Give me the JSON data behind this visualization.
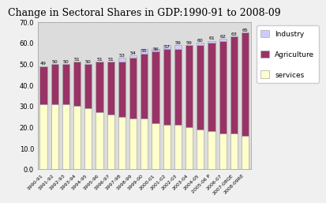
{
  "title": "Change in Sectoral Shares in GDP:1990-91 to 2008-09",
  "categories": [
    "1990-91",
    "1991-92",
    "1992-93",
    "1993-94",
    "1994-95",
    "1995-96",
    "1996-97",
    "1997-98",
    "1998-99",
    "1999-00",
    "2000-01",
    "2001-02",
    "2002-03",
    "2003-04",
    "2004-05",
    "2005-06 P",
    "2006-07",
    "2007-08QE",
    "2008-09RE"
  ],
  "services": [
    31,
    31,
    31,
    30,
    29,
    27,
    26,
    25,
    24,
    24,
    22,
    21,
    21,
    20,
    19,
    18,
    17,
    17,
    16
  ],
  "agriculture": [
    18,
    19,
    19,
    21,
    21,
    24,
    25,
    26,
    29,
    33,
    35,
    38,
    36,
    39,
    40,
    42,
    44,
    46,
    49
  ],
  "bar_labels": [
    49,
    50,
    50,
    51,
    50,
    51,
    51,
    53,
    54,
    55,
    56,
    57,
    59,
    59,
    60,
    61,
    62,
    63,
    65
  ],
  "services_color": "#FFFFCC",
  "agriculture_color": "#993366",
  "industry_color": "#CCCCFF",
  "background_color": "#DCDCDC",
  "fig_color": "#F0F0F0",
  "ylim": [
    0,
    70
  ],
  "yticks": [
    0.0,
    10.0,
    20.0,
    30.0,
    40.0,
    50.0,
    60.0,
    70.0
  ],
  "title_fontsize": 9,
  "legend_labels": [
    "Industry",
    "Agriculture",
    "services"
  ]
}
